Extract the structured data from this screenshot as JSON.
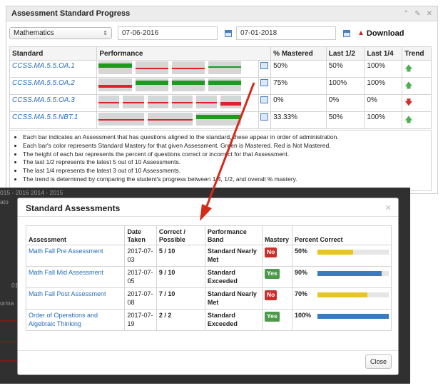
{
  "panel": {
    "title": "Assessment Standard Progress",
    "header_icons": [
      "chevron-up-icon",
      "pencil-icon",
      "close-icon"
    ]
  },
  "controls": {
    "subject": "Mathematics",
    "start_date": "07-06-2016",
    "end_date": "07-01-2018",
    "download_label": "Download"
  },
  "standards_table": {
    "headers": [
      "Standard",
      "Performance",
      "",
      "% Mastered",
      "Last 1/2",
      "Last 1/4",
      "Trend"
    ],
    "rows": [
      {
        "standard": "CCSS.MA.5.5.OA.1",
        "mastered": "50%",
        "last_half": "50%",
        "last_quarter": "100%",
        "trend": "up",
        "bars": [
          {
            "m": true,
            "v": 0.62
          },
          {
            "m": false,
            "v": 0.2
          },
          {
            "m": false,
            "v": 0.2
          },
          {
            "m": true,
            "v": 0.1
          }
        ]
      },
      {
        "standard": "CCSS.MA.5.5.OA.2",
        "mastered": "75%",
        "last_half": "100%",
        "last_quarter": "100%",
        "trend": "up",
        "bars": [
          {
            "m": false,
            "v": 0.4
          },
          {
            "m": true,
            "v": 0.62
          },
          {
            "m": true,
            "v": 0.62
          },
          {
            "m": true,
            "v": 0.62
          }
        ]
      },
      {
        "standard": "CCSS.MA.5.5.OA.3",
        "mastered": "0%",
        "last_half": "0%",
        "last_quarter": "0%",
        "trend": "down",
        "bars": [
          {
            "m": false,
            "v": 0.12
          },
          {
            "m": false,
            "v": 0.12
          },
          {
            "m": false,
            "v": 0.12
          },
          {
            "m": false,
            "v": 0.12
          },
          {
            "m": false,
            "v": 0.12
          },
          {
            "m": false,
            "v": 0.5
          }
        ]
      },
      {
        "standard": "CCSS.MA.5.5.NBT.1",
        "mastered": "33.33%",
        "last_half": "50%",
        "last_quarter": "100%",
        "trend": "up",
        "bars": [
          {
            "m": false,
            "v": 0.12
          },
          {
            "m": false,
            "v": 0.12
          },
          {
            "m": true,
            "v": 0.62
          }
        ]
      }
    ]
  },
  "notes": [
    "Each bar indicates an Assessment that has questions aligned to the standard, these appear in order of administration.",
    "Each bar's color represents Standard Mastery for that given Assessment. Green is Mastered. Red is Not Mastered.",
    "The height of each bar represents the percent of questions correct or incorrect for that Assessment.",
    "The last 1/2 represents the latest 5 out of 10 Assessments.",
    "The last 1/4 represents the latest 3 out of 10 Assessments.",
    "The trend is determined by comparing the student's progress between 1/4, 1/2, and overall % mastery."
  ],
  "backdrop": {
    "years_text": "015 - 2016        2014 - 2015",
    "fragments": [
      "ato",
      "01",
      "orma"
    ]
  },
  "modal": {
    "title": "Standard Assessments",
    "headers": {
      "assessment": "Assessment",
      "date": "Date Taken",
      "correct": "Correct / Possible",
      "band": "Performance Band",
      "mastery": "Mastery",
      "percent": "Percent Correct"
    },
    "rows": [
      {
        "name": "Math Fall Pre Assessment",
        "date": "2017-07-03",
        "correct": "5 / 10",
        "band": "Standard Nearly Met",
        "mastery": "No",
        "percent_label": "50%",
        "percent": 50,
        "bar_color": "#e8c526"
      },
      {
        "name": "Math Fall Mid Assessment",
        "date": "2017-07-05",
        "correct": "9 / 10",
        "band": "Standard Exceeded",
        "mastery": "Yes",
        "percent_label": "90%",
        "percent": 90,
        "bar_color": "#3a7bbf"
      },
      {
        "name": "Math Fall Post Assessment",
        "date": "2017-07-08",
        "correct": "7 / 10",
        "band": "Standard Nearly Met",
        "mastery": "No",
        "percent_label": "70%",
        "percent": 70,
        "bar_color": "#e8c526"
      },
      {
        "name": "Order of Operations and Algebraic Thinking",
        "date": "2017-07-19",
        "correct": "2 / 2",
        "band": "Standard Exceeded",
        "mastery": "Yes",
        "percent_label": "100%",
        "percent": 100,
        "bar_color": "#3a7bbf"
      }
    ],
    "close_label": "Close"
  },
  "colors": {
    "mastered": "#1e9a1e",
    "not_mastered": "#e0202a",
    "bar_background": "#d6d6d6",
    "link": "#2a6ebb",
    "annotation_arrow": "#d42a1a"
  }
}
